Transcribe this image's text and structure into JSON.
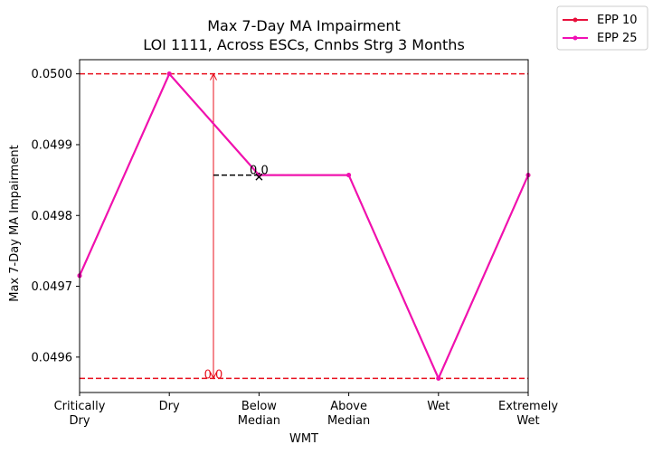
{
  "chart_data": {
    "type": "line",
    "title": "Max 7-Day MA Impairment",
    "subtitle": "LOI 1111, Across ESCs, Cnnbs Strg 3 Months",
    "xlabel": "WMT",
    "ylabel": "Max 7-Day MA Impairment",
    "categories": [
      [
        "Critically",
        "Dry"
      ],
      [
        "Dry"
      ],
      [
        "Below",
        "Median"
      ],
      [
        "Above",
        "Median"
      ],
      [
        "Wet"
      ],
      [
        "Extremely",
        "Wet"
      ]
    ],
    "ylim": [
      0.04955,
      0.05002
    ],
    "yticks": [
      "0.0496",
      "0.0497",
      "0.0498",
      "0.0499",
      "0.0500"
    ],
    "series": [
      {
        "name": "EPP 10",
        "color": "#e8103c",
        "values": [
          0.049715,
          0.05,
          0.049857,
          0.049857,
          0.04957,
          0.049857
        ]
      },
      {
        "name": "EPP 25",
        "color": "#f00fb4",
        "values": [
          0.049715,
          0.05,
          0.049857,
          0.049857,
          0.04957,
          0.049857
        ]
      }
    ],
    "reference_lines": [
      {
        "value": 0.05,
        "color": "#e8101e",
        "style": "dashed"
      },
      {
        "value": 0.04957,
        "color": "#e8101e",
        "style": "dashed"
      }
    ],
    "annotations": [
      {
        "text": "0.0",
        "color": "#000000"
      },
      {
        "text": "0.0",
        "color": "#e8101e"
      }
    ],
    "legend_position": "outside-top-right",
    "grid": false
  }
}
